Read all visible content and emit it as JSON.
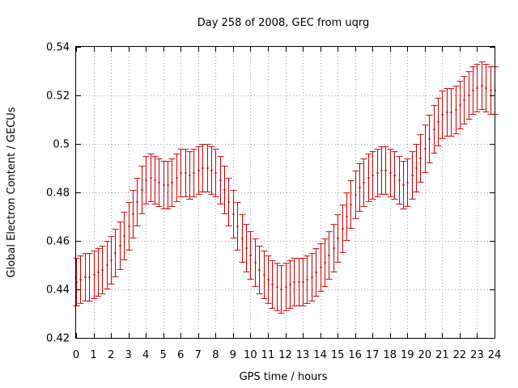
{
  "chart_data": {
    "type": "errorbar",
    "title": "Day 258 of 2008, GEC from uqrg",
    "xlabel": "GPS time / hours",
    "ylabel": "Global Electron Content / GECUs",
    "xlim": [
      0,
      24
    ],
    "ylim": [
      0.42,
      0.54
    ],
    "xticks": [
      0,
      1,
      2,
      3,
      4,
      5,
      6,
      7,
      8,
      9,
      10,
      11,
      12,
      13,
      14,
      15,
      16,
      17,
      18,
      19,
      20,
      21,
      22,
      23,
      24
    ],
    "xtick_labels": [
      "0",
      "1",
      "2",
      "3",
      "4",
      "5",
      "6",
      "7",
      "8",
      "9",
      "10",
      "11",
      "12",
      "13",
      "14",
      "15",
      "16",
      "17",
      "18",
      "19",
      "20",
      "21",
      "22",
      "23",
      "24"
    ],
    "yticks": [
      0.42,
      0.44,
      0.46,
      0.48,
      0.5,
      0.52,
      0.54
    ],
    "ytick_labels": [
      "0.42",
      "0.44",
      "0.46",
      "0.48",
      "0.5",
      "0.52",
      "0.54"
    ],
    "grid": true,
    "series_color": "#cc0000",
    "error": 0.0098,
    "x": [
      0,
      0.25,
      0.5,
      0.75,
      1,
      1.25,
      1.5,
      1.75,
      2,
      2.25,
      2.5,
      2.75,
      3,
      3.25,
      3.5,
      3.75,
      4,
      4.25,
      4.5,
      4.75,
      5,
      5.25,
      5.5,
      5.75,
      6,
      6.25,
      6.5,
      6.75,
      7,
      7.25,
      7.5,
      7.75,
      8,
      8.25,
      8.5,
      8.75,
      9,
      9.25,
      9.5,
      9.75,
      10,
      10.25,
      10.5,
      10.75,
      11,
      11.25,
      11.5,
      11.75,
      12,
      12.25,
      12.5,
      12.75,
      13,
      13.25,
      13.5,
      13.75,
      14,
      14.25,
      14.5,
      14.75,
      15,
      15.25,
      15.5,
      15.75,
      16,
      16.25,
      16.5,
      16.75,
      17,
      17.25,
      17.5,
      17.75,
      18,
      18.25,
      18.5,
      18.75,
      19,
      19.25,
      19.5,
      19.75,
      20,
      20.25,
      20.5,
      20.75,
      21,
      21.25,
      21.5,
      21.75,
      22,
      22.25,
      22.5,
      22.75,
      23,
      23.25,
      23.5,
      23.75,
      24
    ],
    "y": [
      0.443,
      0.444,
      0.445,
      0.445,
      0.446,
      0.447,
      0.448,
      0.45,
      0.452,
      0.455,
      0.458,
      0.462,
      0.466,
      0.471,
      0.476,
      0.481,
      0.485,
      0.486,
      0.485,
      0.484,
      0.483,
      0.483,
      0.484,
      0.486,
      0.488,
      0.488,
      0.487,
      0.488,
      0.489,
      0.49,
      0.49,
      0.489,
      0.488,
      0.485,
      0.481,
      0.476,
      0.471,
      0.466,
      0.461,
      0.457,
      0.454,
      0.451,
      0.448,
      0.446,
      0.444,
      0.442,
      0.441,
      0.44,
      0.441,
      0.442,
      0.443,
      0.443,
      0.443,
      0.444,
      0.445,
      0.447,
      0.449,
      0.451,
      0.454,
      0.457,
      0.461,
      0.465,
      0.47,
      0.475,
      0.479,
      0.482,
      0.484,
      0.486,
      0.487,
      0.488,
      0.489,
      0.489,
      0.488,
      0.487,
      0.485,
      0.483,
      0.484,
      0.487,
      0.49,
      0.494,
      0.498,
      0.502,
      0.506,
      0.509,
      0.512,
      0.513,
      0.513,
      0.514,
      0.516,
      0.518,
      0.52,
      0.522,
      0.523,
      0.524,
      0.523,
      0.522,
      0.522
    ]
  }
}
